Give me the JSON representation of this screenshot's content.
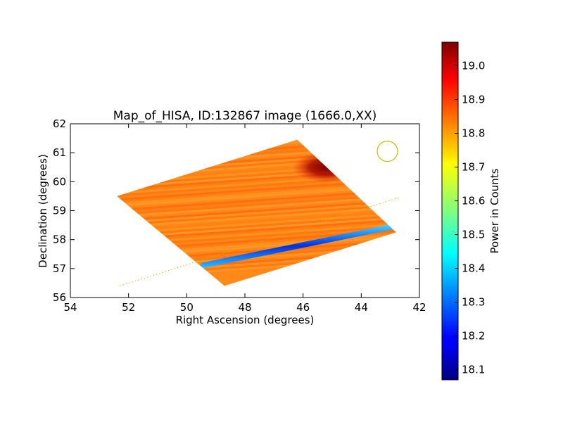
{
  "chart_data": {
    "type": "heatmap",
    "title": "Map_of_HISA, ID:132867 image (1666.0,XX)",
    "xlabel": "Right Ascension (degrees)",
    "ylabel": "Declination (degrees)",
    "xlim": [
      54,
      42
    ],
    "ylim": [
      56,
      62
    ],
    "x_ticks": [
      54,
      52,
      50,
      48,
      46,
      44,
      42
    ],
    "y_ticks": [
      56,
      57,
      58,
      59,
      60,
      61,
      62
    ],
    "x_tick_labels": [
      "54",
      "52",
      "50",
      "48",
      "46",
      "44",
      "42"
    ],
    "y_tick_labels": [
      "56",
      "57",
      "58",
      "59",
      "60",
      "61",
      "62"
    ],
    "grid": false,
    "map_region_corners": [
      {
        "ra": 52.4,
        "dec": 59.5
      },
      {
        "ra": 46.2,
        "dec": 61.45
      },
      {
        "ra": 42.8,
        "dec": 58.25
      },
      {
        "ra": 48.7,
        "dec": 56.4
      }
    ],
    "background_power": 18.85,
    "features": [
      {
        "kind": "low-power stripe",
        "from": {
          "ra": 49.5,
          "dec": 57.1
        },
        "to": {
          "ra": 42.9,
          "dec": 58.45
        },
        "power": 18.25
      },
      {
        "kind": "high-power blob",
        "center": {
          "ra": 45.2,
          "dec": 60.5
        },
        "power": 19.05
      }
    ],
    "dotted_line": {
      "from": {
        "ra": 52.3,
        "dec": 56.4
      },
      "to": {
        "ra": 42.7,
        "dec": 59.45
      },
      "color": "#bfbf00"
    },
    "beam_circle": {
      "ra": 43.1,
      "dec": 61.05,
      "color": "#bfbf00"
    },
    "colorbar": {
      "label": "Power in Counts",
      "range": [
        18.07,
        19.07
      ],
      "ticks": [
        18.1,
        18.2,
        18.3,
        18.4,
        18.5,
        18.6,
        18.7,
        18.8,
        18.9,
        19.0
      ],
      "tick_labels": [
        "18.1",
        "18.2",
        "18.3",
        "18.4",
        "18.5",
        "18.6",
        "18.7",
        "18.8",
        "18.9",
        "19.0"
      ],
      "colormap": "jet"
    }
  }
}
